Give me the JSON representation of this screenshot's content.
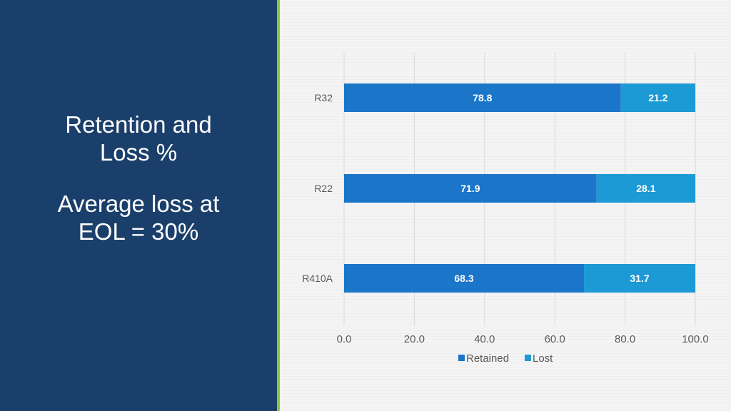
{
  "slide": {
    "title_line1": "Retention and",
    "title_line2": "Loss %",
    "subtitle_line1": "Average loss at",
    "subtitle_line2": "EOL = 30%"
  },
  "colors": {
    "left_panel": "#1b3f6b",
    "accent": "#8dc63f",
    "retained": "#1b75c9",
    "lost": "#1c9ad6"
  },
  "chart_data": {
    "type": "bar",
    "orientation": "horizontal",
    "stacked": true,
    "categories": [
      "R32",
      "R22",
      "R410A"
    ],
    "series": [
      {
        "name": "Retained",
        "values": [
          78.8,
          71.9,
          68.3
        ]
      },
      {
        "name": "Lost",
        "values": [
          21.2,
          28.1,
          31.7
        ]
      }
    ],
    "value_labels": [
      [
        "78.8",
        "71.9",
        "68.3"
      ],
      [
        "21.2",
        "28.1",
        "31.7"
      ]
    ],
    "xlim": [
      0,
      100
    ],
    "xticks": [
      0,
      20,
      40,
      60,
      80,
      100
    ],
    "xtick_labels": [
      "0.0",
      "20.0",
      "40.0",
      "60.0",
      "80.0",
      "100.0"
    ],
    "grid": "vertical",
    "legend_position": "bottom",
    "title": "",
    "xlabel": "",
    "ylabel": ""
  }
}
